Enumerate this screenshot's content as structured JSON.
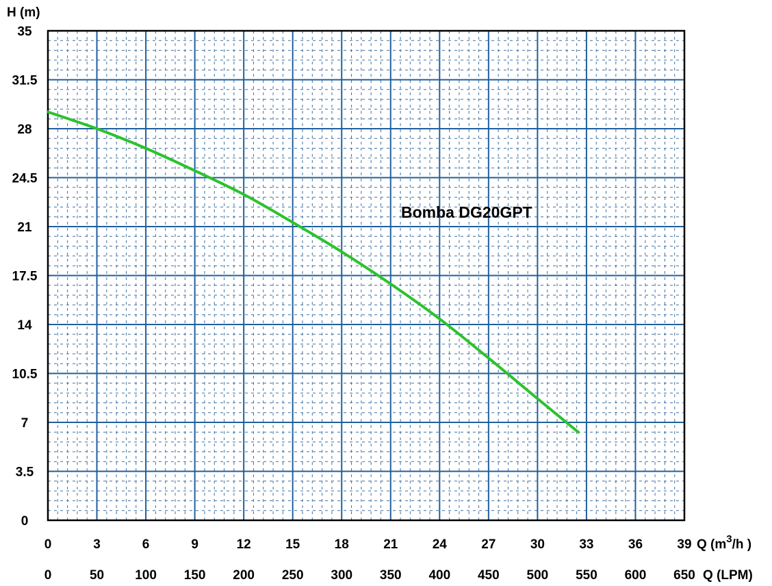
{
  "chart_data": {
    "type": "line",
    "ylabel": "H (m)",
    "xlabel_m3h": "Q (m³/h)",
    "xlabel_m3h_parts": {
      "prefix": "Q (m",
      "sup": "3",
      "suffix": "/h )"
    },
    "xlabel_lpm": "Q (LPM)",
    "annotation": "Bomba DG20GPT",
    "ylim": [
      0,
      35
    ],
    "xlim": [
      0,
      39
    ],
    "y_ticks": [
      "0",
      "3.5",
      "7",
      "10.5",
      "14",
      "17.5",
      "21",
      "24.5",
      "28",
      "31.5",
      "35"
    ],
    "x_ticks_m3h": [
      "0",
      "3",
      "6",
      "9",
      "12",
      "15",
      "18",
      "21",
      "24",
      "27",
      "30",
      "33",
      "36",
      "39"
    ],
    "x_ticks_lpm": [
      "0",
      "50",
      "100",
      "150",
      "200",
      "250",
      "300",
      "350",
      "400",
      "450",
      "500",
      "550",
      "600",
      "650"
    ],
    "grid": true,
    "colors": {
      "curve": "#2cc22c",
      "major_grid": "#1f5f9e",
      "minor_grid": "#3f6fa0",
      "frame": "#000000"
    },
    "series": [
      {
        "name": "Bomba DG20GPT",
        "x": [
          0,
          3,
          6,
          9,
          12,
          15,
          18,
          21,
          24,
          27,
          30,
          32.5
        ],
        "y": [
          29.2,
          28.0,
          26.6,
          25.0,
          23.3,
          21.3,
          19.2,
          16.9,
          14.4,
          11.6,
          8.7,
          6.3
        ]
      }
    ]
  }
}
